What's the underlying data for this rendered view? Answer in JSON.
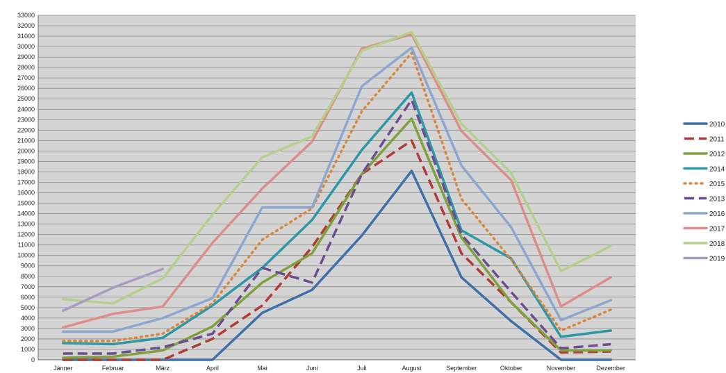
{
  "chart_data": {
    "type": "line",
    "categories": [
      "Jänner",
      "Februar",
      "März",
      "April",
      "Mai",
      "Juni",
      "Juli",
      "August",
      "September",
      "Oktober",
      "November",
      "Dezember"
    ],
    "ylim": [
      0,
      33000
    ],
    "ytick_step": 1000,
    "grid": true,
    "legend_position": "right",
    "series": [
      {
        "name": "2010",
        "color": "#3f6fa8",
        "dash": "solid",
        "values": [
          0,
          0,
          0,
          0,
          4500,
          6700,
          11900,
          18100,
          7900,
          3700,
          0,
          0
        ]
      },
      {
        "name": "2011",
        "color": "#b03a36",
        "dash": "dashed",
        "values": [
          0,
          0,
          0,
          2000,
          5200,
          10800,
          17800,
          21000,
          10200,
          5500,
          700,
          800
        ]
      },
      {
        "name": "2012",
        "color": "#7ea13c",
        "dash": "solid",
        "values": [
          200,
          300,
          900,
          3200,
          7400,
          10200,
          17800,
          23100,
          11700,
          5500,
          900,
          900
        ]
      },
      {
        "name": "2014",
        "color": "#2d97a6",
        "dash": "solid",
        "values": [
          1600,
          1500,
          2100,
          5200,
          8800,
          13400,
          20100,
          25600,
          12400,
          9700,
          2200,
          2800
        ]
      },
      {
        "name": "2015",
        "color": "#d9863a",
        "dash": "dotted",
        "values": [
          1800,
          1800,
          2500,
          5400,
          11500,
          14500,
          23800,
          29400,
          15400,
          9600,
          2800,
          4800
        ]
      },
      {
        "name": "2013",
        "color": "#6c4c8f",
        "dash": "dashed",
        "values": [
          600,
          600,
          1200,
          2500,
          8800,
          7400,
          17800,
          24900,
          12000,
          6500,
          1100,
          1500
        ]
      },
      {
        "name": "2016",
        "color": "#8ba6d1",
        "dash": "solid",
        "values": [
          2700,
          2700,
          4000,
          5900,
          14600,
          14600,
          26200,
          29900,
          18600,
          12700,
          3800,
          5700
        ]
      },
      {
        "name": "2017",
        "color": "#dd8d88",
        "dash": "solid",
        "values": [
          3100,
          4400,
          5100,
          11200,
          16400,
          20900,
          29800,
          31200,
          21900,
          17200,
          5100,
          7900
        ]
      },
      {
        "name": "2018",
        "color": "#b5cf8d",
        "dash": "solid",
        "values": [
          5800,
          5400,
          7800,
          13900,
          19400,
          21400,
          29600,
          31400,
          22600,
          17900,
          8500,
          10900
        ]
      },
      {
        "name": "2019",
        "color": "#a89bc3",
        "dash": "solid",
        "values": [
          4700,
          6900,
          8700,
          null,
          null,
          null,
          null,
          null,
          null,
          null,
          null,
          null
        ]
      }
    ]
  }
}
